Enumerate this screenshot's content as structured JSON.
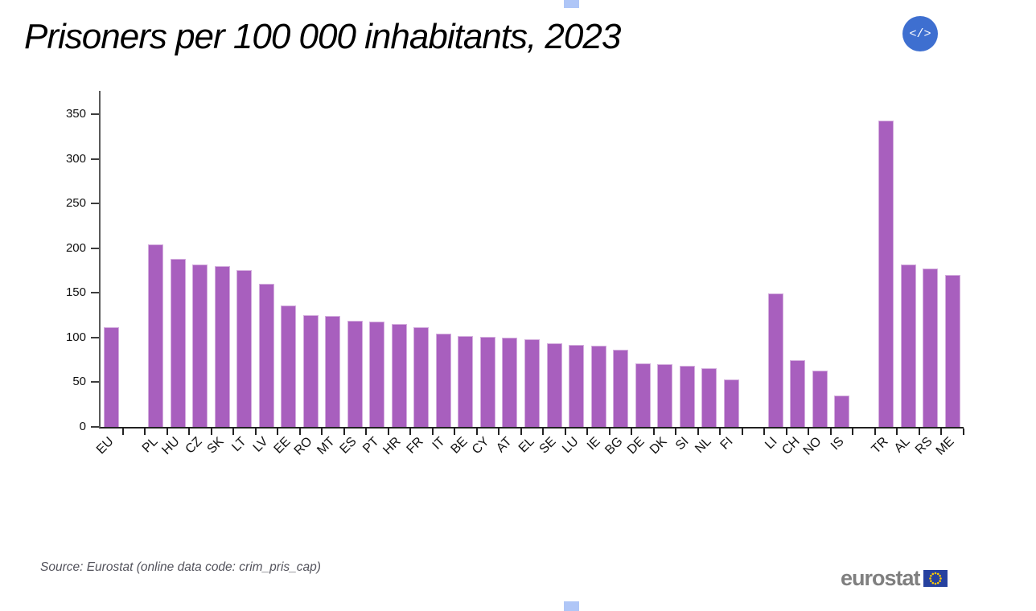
{
  "page": {
    "title": "Prisoners per 100 000 inhabitants, 2023",
    "embed_button": {
      "glyph": "</>",
      "color": "#3e6fd0"
    },
    "source_note": "Source: Eurostat (online data code: crim_pris_cap)",
    "logo": {
      "text": "eurostat",
      "flag_blue": "#26419f",
      "star_yellow": "#ffcc00"
    },
    "handle_color": "#afc6f7"
  },
  "chart_data": {
    "type": "bar",
    "title": "Prisoners per 100 000 inhabitants, 2023",
    "xlabel": "",
    "ylabel": "",
    "ylim": [
      0,
      376
    ],
    "yticks": [
      0,
      50,
      100,
      150,
      200,
      250,
      300,
      350
    ],
    "grid": false,
    "legend": "none",
    "bar_color": "#a85fbe",
    "categories": [
      "EU",
      "",
      "PL",
      "HU",
      "CZ",
      "SK",
      "LT",
      "LV",
      "EE",
      "RO",
      "MT",
      "ES",
      "PT",
      "HR",
      "FR",
      "IT",
      "BE",
      "CY",
      "AT",
      "EL",
      "SE",
      "LU",
      "IE",
      "BG",
      "DE",
      "DK",
      "SI",
      "NL",
      "FI",
      "",
      "LI",
      "CH",
      "NO",
      "IS",
      "",
      "TR",
      "AL",
      "RS",
      "ME"
    ],
    "values": [
      112,
      null,
      204,
      188,
      182,
      180,
      175,
      160,
      136,
      125,
      124,
      119,
      118,
      115,
      112,
      104,
      102,
      101,
      100,
      98,
      94,
      92,
      91,
      86,
      71,
      70,
      68,
      66,
      53,
      null,
      149,
      75,
      63,
      35,
      null,
      343,
      182,
      177,
      170
    ],
    "groups": [
      {
        "name": "eu-aggregate",
        "members": [
          "EU"
        ]
      },
      {
        "name": "eu-countries",
        "members": [
          "PL",
          "HU",
          "CZ",
          "SK",
          "LT",
          "LV",
          "EE",
          "RO",
          "MT",
          "ES",
          "PT",
          "HR",
          "FR",
          "IT",
          "BE",
          "CY",
          "AT",
          "EL",
          "SE",
          "LU",
          "IE",
          "BG",
          "DE",
          "DK",
          "SI",
          "NL",
          "FI"
        ]
      },
      {
        "name": "efta-countries",
        "members": [
          "LI",
          "CH",
          "NO",
          "IS"
        ]
      },
      {
        "name": "candidate-countries",
        "members": [
          "TR",
          "AL",
          "RS",
          "ME"
        ]
      }
    ]
  }
}
